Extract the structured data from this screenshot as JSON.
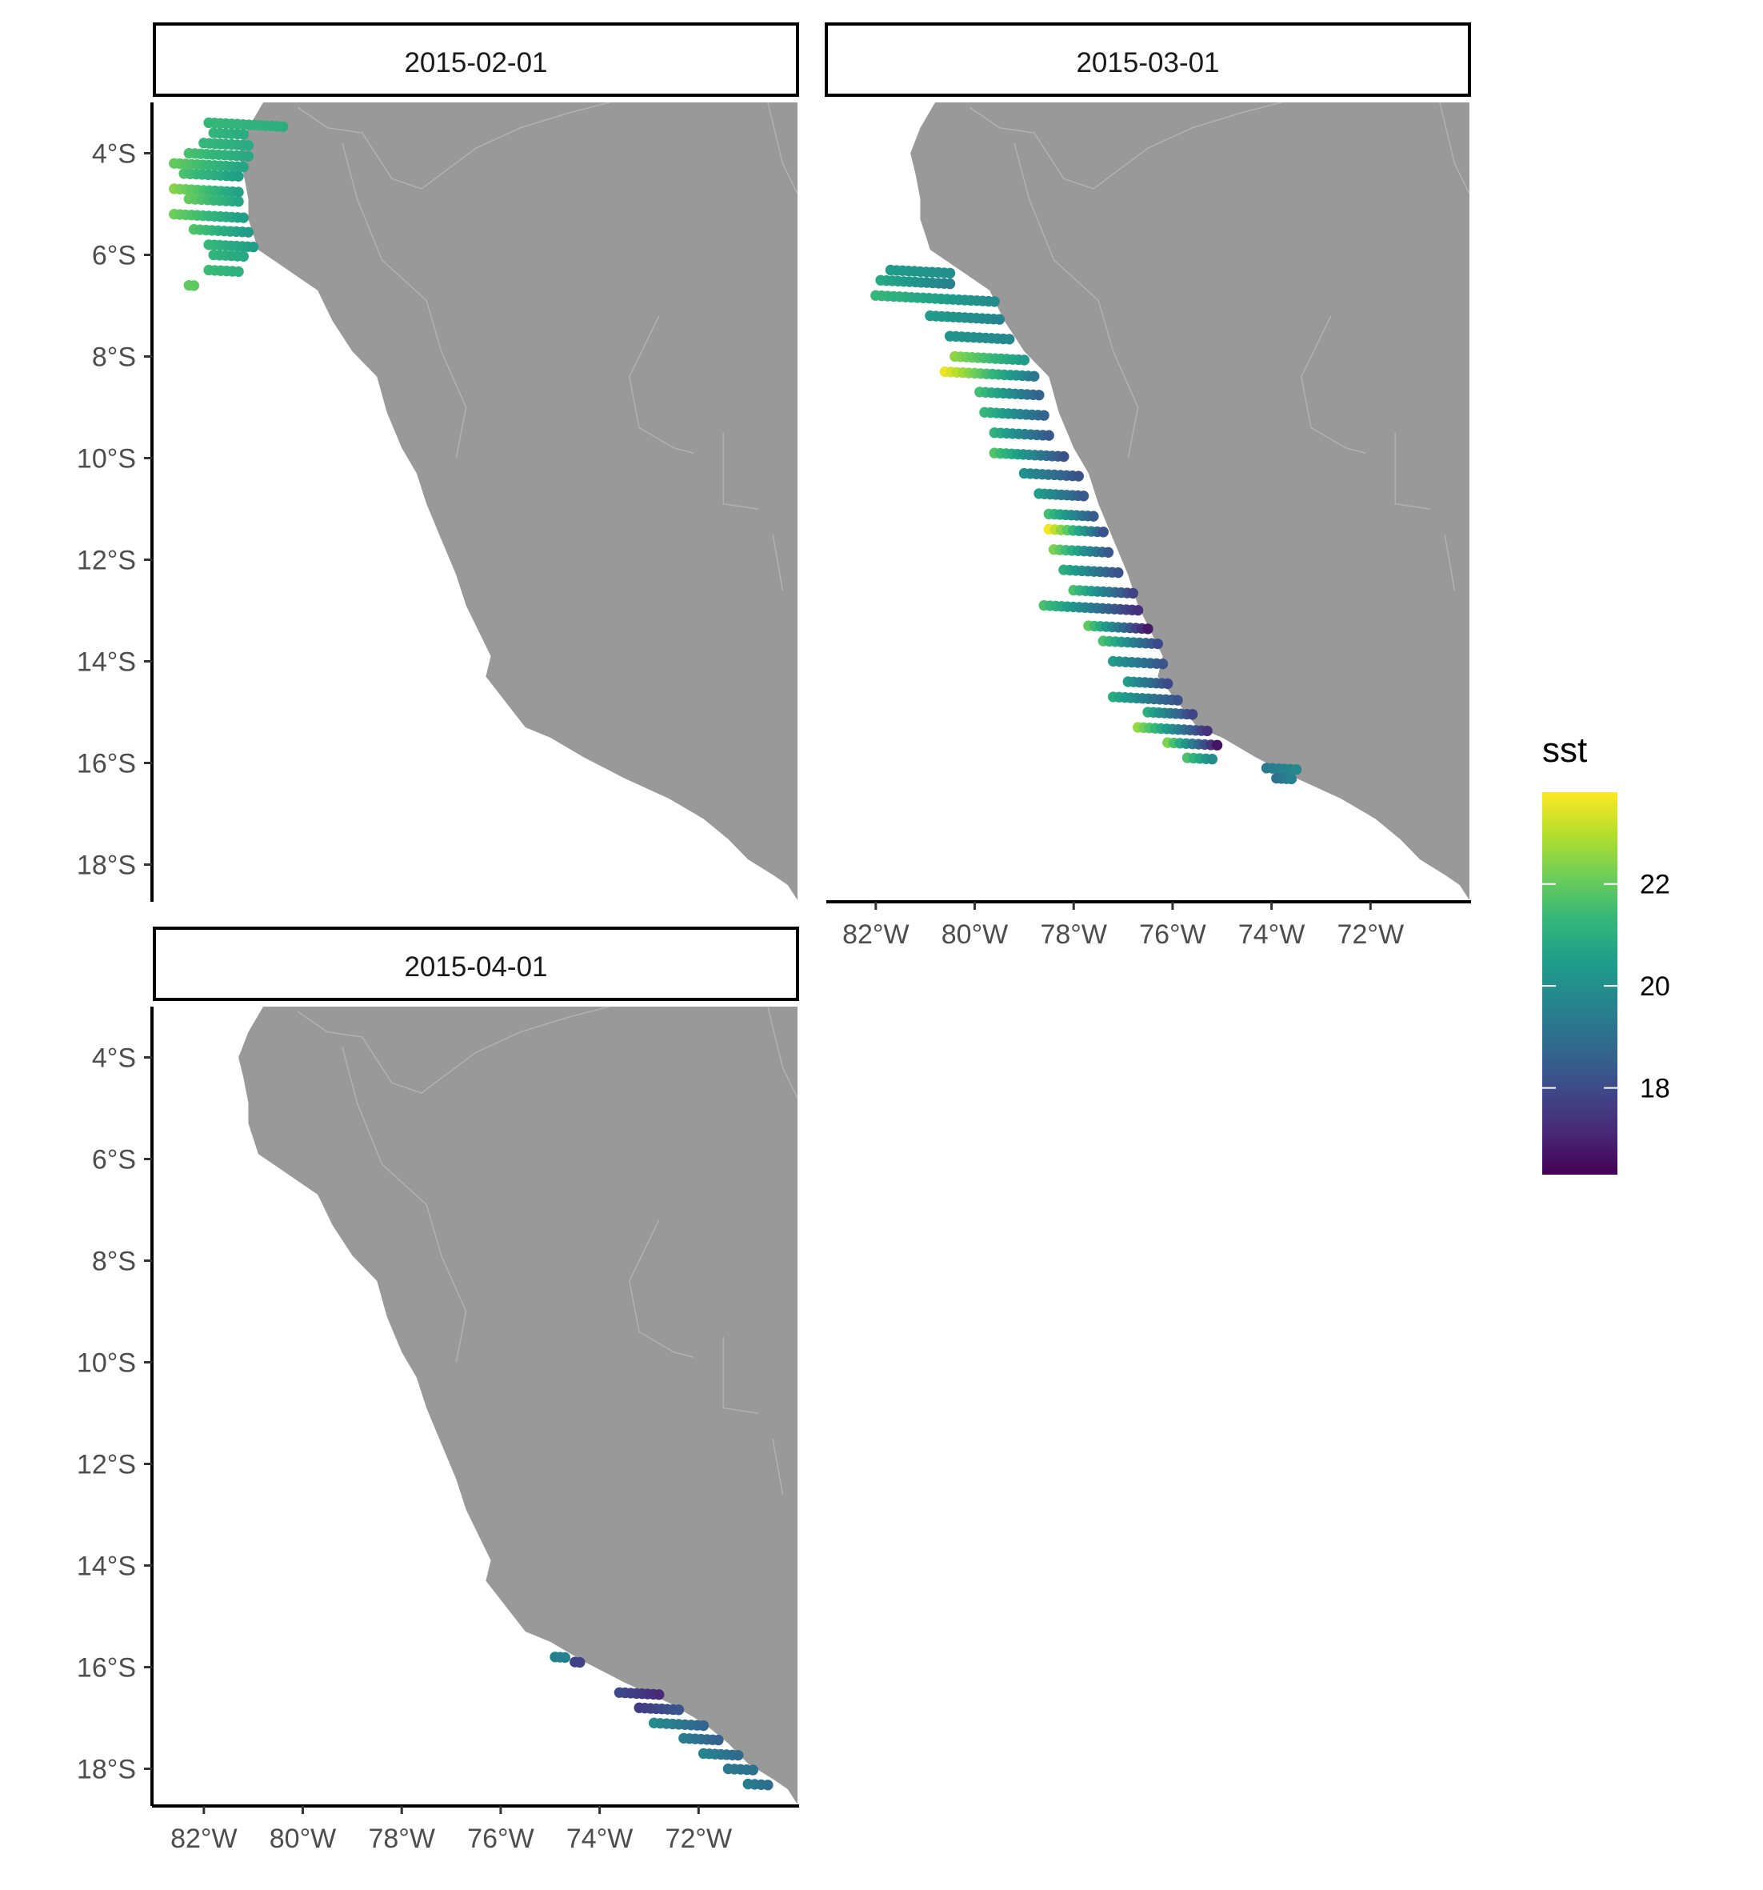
{
  "chart_data": {
    "type": "scatter",
    "subtype": "faceted map",
    "x_axis": {
      "lim": [
        -83,
        -70
      ],
      "ticks": [
        -82,
        -80,
        -78,
        -76,
        -74,
        -72
      ],
      "tick_labels": [
        "82°W",
        "80°W",
        "78°W",
        "76°W",
        "74°W",
        "72°W"
      ]
    },
    "y_axis": {
      "lim": [
        -18.7,
        -3
      ],
      "ticks": [
        -4,
        -6,
        -8,
        -10,
        -12,
        -14,
        -16,
        -18
      ],
      "tick_labels": [
        "4°S",
        "6°S",
        "8°S",
        "10°S",
        "12°S",
        "14°S",
        "16°S",
        "18°S"
      ]
    },
    "grid": false,
    "land_color": "#999999",
    "border_color": "#b3b3b3",
    "coastline": [
      [
        -80.8,
        -3.0
      ],
      [
        -81.1,
        -3.5
      ],
      [
        -81.3,
        -4.0
      ],
      [
        -81.2,
        -4.4
      ],
      [
        -81.1,
        -4.9
      ],
      [
        -81.1,
        -5.3
      ],
      [
        -81.0,
        -5.6
      ],
      [
        -80.9,
        -5.9
      ],
      [
        -80.3,
        -6.3
      ],
      [
        -79.7,
        -6.7
      ],
      [
        -79.4,
        -7.3
      ],
      [
        -79.0,
        -7.9
      ],
      [
        -78.5,
        -8.4
      ],
      [
        -78.3,
        -9.1
      ],
      [
        -78.0,
        -9.8
      ],
      [
        -77.7,
        -10.3
      ],
      [
        -77.5,
        -10.9
      ],
      [
        -77.2,
        -11.6
      ],
      [
        -76.9,
        -12.3
      ],
      [
        -76.7,
        -12.9
      ],
      [
        -76.4,
        -13.5
      ],
      [
        -76.2,
        -13.9
      ],
      [
        -76.3,
        -14.3
      ],
      [
        -75.9,
        -14.8
      ],
      [
        -75.5,
        -15.3
      ],
      [
        -75.0,
        -15.5
      ],
      [
        -74.3,
        -15.9
      ],
      [
        -73.5,
        -16.3
      ],
      [
        -72.6,
        -16.7
      ],
      [
        -71.9,
        -17.1
      ],
      [
        -71.4,
        -17.5
      ],
      [
        -71.0,
        -17.9
      ],
      [
        -70.5,
        -18.2
      ],
      [
        -70.2,
        -18.4
      ],
      [
        -70.0,
        -18.7
      ]
    ],
    "borders": [
      [
        [
          -80.1,
          -3.1
        ],
        [
          -79.5,
          -3.5
        ],
        [
          -78.8,
          -3.6
        ],
        [
          -78.2,
          -4.5
        ],
        [
          -77.6,
          -4.7
        ],
        [
          -76.5,
          -3.9
        ],
        [
          -75.6,
          -3.5
        ],
        [
          -74.6,
          -3.2
        ],
        [
          -73.8,
          -3.0
        ]
      ],
      [
        [
          -70.6,
          -3.0
        ],
        [
          -70.3,
          -4.2
        ],
        [
          -70.0,
          -4.8
        ]
      ],
      [
        [
          -72.8,
          -7.2
        ],
        [
          -73.4,
          -8.4
        ],
        [
          -73.2,
          -9.4
        ],
        [
          -72.5,
          -9.8
        ],
        [
          -72.1,
          -9.9
        ]
      ],
      [
        [
          -79.2,
          -3.8
        ],
        [
          -78.9,
          -4.9
        ],
        [
          -78.4,
          -6.1
        ],
        [
          -77.5,
          -6.9
        ],
        [
          -77.2,
          -7.9
        ],
        [
          -76.7,
          -9.0
        ],
        [
          -76.9,
          -10.0
        ]
      ],
      [
        [
          -71.5,
          -9.5
        ],
        [
          -71.5,
          -10.9
        ],
        [
          -70.8,
          -11.0
        ]
      ],
      [
        [
          -70.5,
          -11.5
        ],
        [
          -70.3,
          -12.6
        ]
      ]
    ],
    "color_scale": {
      "name": "sst",
      "range": [
        16.3,
        23.8
      ],
      "breaks": [
        18,
        20,
        22
      ],
      "palette": [
        "#440154",
        "#482878",
        "#3e4989",
        "#31688e",
        "#26828e",
        "#1f9e89",
        "#35b779",
        "#6ece58",
        "#b5de2b",
        "#fde725"
      ]
    },
    "legend_position": "right",
    "panels": [
      {
        "label": "2015-02-01",
        "tracks": [
          {
            "lat": -3.4,
            "lon": [
              -81.9,
              -80.4
            ],
            "sst": [
              21.3,
              21.0
            ]
          },
          {
            "lat": -3.6,
            "lon": [
              -81.8,
              -81.2
            ],
            "sst": [
              21.2,
              20.9
            ]
          },
          {
            "lat": -3.8,
            "lon": [
              -82.0,
              -81.1
            ],
            "sst": [
              21.3,
              20.9
            ]
          },
          {
            "lat": -4.0,
            "lon": [
              -82.3,
              -81.1
            ],
            "sst": [
              21.6,
              20.8
            ]
          },
          {
            "lat": -4.2,
            "lon": [
              -82.6,
              -81.2
            ],
            "sst": [
              22.0,
              20.7
            ]
          },
          {
            "lat": -4.4,
            "lon": [
              -82.4,
              -81.3
            ],
            "sst": [
              21.6,
              20.5
            ]
          },
          {
            "lat": -4.7,
            "lon": [
              -82.6,
              -81.3
            ],
            "sst": [
              22.4,
              20.6
            ]
          },
          {
            "lat": -4.9,
            "lon": [
              -82.3,
              -81.3
            ],
            "sst": [
              22.0,
              20.7
            ]
          },
          {
            "lat": -5.2,
            "lon": [
              -82.6,
              -81.2
            ],
            "sst": [
              22.1,
              20.5
            ]
          },
          {
            "lat": -5.5,
            "lon": [
              -82.2,
              -81.1
            ],
            "sst": [
              21.7,
              20.4
            ]
          },
          {
            "lat": -5.8,
            "lon": [
              -81.9,
              -81.0
            ],
            "sst": [
              21.3,
              20.5
            ]
          },
          {
            "lat": -6.0,
            "lon": [
              -81.8,
              -81.2
            ],
            "sst": [
              21.2,
              20.8
            ]
          },
          {
            "lat": -6.3,
            "lon": [
              -81.9,
              -81.3
            ],
            "sst": [
              21.4,
              21.1
            ]
          },
          {
            "lat": -6.6,
            "lon": [
              -82.3,
              -82.2
            ],
            "sst": [
              21.9,
              21.9
            ]
          }
        ]
      },
      {
        "label": "2015-03-01",
        "tracks": [
          {
            "lat": -6.3,
            "lon": [
              -81.7,
              -80.5
            ],
            "sst": [
              20.4,
              20.0
            ]
          },
          {
            "lat": -6.5,
            "lon": [
              -81.9,
              -80.5
            ],
            "sst": [
              20.8,
              19.6
            ]
          },
          {
            "lat": -6.8,
            "lon": [
              -82.0,
              -79.6
            ],
            "sst": [
              21.3,
              19.9
            ]
          },
          {
            "lat": -7.2,
            "lon": [
              -80.9,
              -79.5
            ],
            "sst": [
              20.4,
              19.7
            ]
          },
          {
            "lat": -7.6,
            "lon": [
              -80.5,
              -79.3
            ],
            "sst": [
              20.2,
              19.8
            ]
          },
          {
            "lat": -8.0,
            "lon": [
              -80.4,
              -79.0
            ],
            "sst": [
              22.5,
              20.4
            ]
          },
          {
            "lat": -8.3,
            "lon": [
              -80.6,
              -78.8
            ],
            "sst": [
              23.6,
              19.3
            ]
          },
          {
            "lat": -8.7,
            "lon": [
              -79.9,
              -78.7
            ],
            "sst": [
              21.5,
              18.7
            ]
          },
          {
            "lat": -9.1,
            "lon": [
              -79.8,
              -78.6
            ],
            "sst": [
              21.3,
              18.7
            ]
          },
          {
            "lat": -9.5,
            "lon": [
              -79.6,
              -78.5
            ],
            "sst": [
              21.1,
              18.4
            ]
          },
          {
            "lat": -9.9,
            "lon": [
              -79.6,
              -78.2
            ],
            "sst": [
              21.7,
              18.2
            ]
          },
          {
            "lat": -10.3,
            "lon": [
              -79.0,
              -77.9
            ],
            "sst": [
              20.1,
              18.2
            ]
          },
          {
            "lat": -10.7,
            "lon": [
              -78.7,
              -77.8
            ],
            "sst": [
              20.5,
              18.4
            ]
          },
          {
            "lat": -11.1,
            "lon": [
              -78.5,
              -77.6
            ],
            "sst": [
              21.5,
              18.5
            ]
          },
          {
            "lat": -11.4,
            "lon": [
              -78.5,
              -77.4
            ],
            "sst": [
              23.7,
              18.3
            ]
          },
          {
            "lat": -11.8,
            "lon": [
              -78.4,
              -77.3
            ],
            "sst": [
              22.3,
              18.4
            ]
          },
          {
            "lat": -12.2,
            "lon": [
              -78.2,
              -77.1
            ],
            "sst": [
              21.0,
              18.2
            ]
          },
          {
            "lat": -12.6,
            "lon": [
              -78.0,
              -76.8
            ],
            "sst": [
              21.6,
              17.8
            ]
          },
          {
            "lat": -12.9,
            "lon": [
              -78.6,
              -76.7
            ],
            "sst": [
              21.6,
              17.3
            ]
          },
          {
            "lat": -13.3,
            "lon": [
              -77.7,
              -76.5
            ],
            "sst": [
              21.9,
              16.8
            ]
          },
          {
            "lat": -13.6,
            "lon": [
              -77.4,
              -76.3
            ],
            "sst": [
              21.6,
              18.0
            ]
          },
          {
            "lat": -14.0,
            "lon": [
              -77.2,
              -76.2
            ],
            "sst": [
              20.4,
              18.3
            ]
          },
          {
            "lat": -14.4,
            "lon": [
              -76.9,
              -76.1
            ],
            "sst": [
              20.4,
              18.0
            ]
          },
          {
            "lat": -14.7,
            "lon": [
              -77.2,
              -75.9
            ],
            "sst": [
              20.9,
              18.2
            ]
          },
          {
            "lat": -15.0,
            "lon": [
              -76.5,
              -75.6
            ],
            "sst": [
              21.0,
              17.8
            ]
          },
          {
            "lat": -15.3,
            "lon": [
              -76.7,
              -75.3
            ],
            "sst": [
              22.6,
              17.4
            ]
          },
          {
            "lat": -15.6,
            "lon": [
              -76.1,
              -75.1
            ],
            "sst": [
              22.3,
              16.7
            ]
          },
          {
            "lat": -15.9,
            "lon": [
              -75.7,
              -75.2
            ],
            "sst": [
              21.6,
              19.9
            ]
          },
          {
            "lat": -16.1,
            "lon": [
              -74.1,
              -73.5
            ],
            "sst": [
              19.4,
              19.8
            ]
          },
          {
            "lat": -16.3,
            "lon": [
              -73.9,
              -73.6
            ],
            "sst": [
              19.1,
              19.6
            ]
          }
        ]
      },
      {
        "label": "2015-04-01",
        "tracks": [
          {
            "lat": -15.8,
            "lon": [
              -74.9,
              -74.7
            ],
            "sst": [
              19.6,
              19.6
            ]
          },
          {
            "lat": -15.9,
            "lon": [
              -74.5,
              -74.4
            ],
            "sst": [
              17.8,
              17.8
            ]
          },
          {
            "lat": -16.5,
            "lon": [
              -73.6,
              -72.8
            ],
            "sst": [
              18.0,
              17.2
            ]
          },
          {
            "lat": -16.8,
            "lon": [
              -73.2,
              -72.4
            ],
            "sst": [
              17.6,
              18.3
            ]
          },
          {
            "lat": -17.1,
            "lon": [
              -72.9,
              -71.9
            ],
            "sst": [
              20.0,
              18.7
            ]
          },
          {
            "lat": -17.4,
            "lon": [
              -72.3,
              -71.6
            ],
            "sst": [
              19.5,
              18.6
            ]
          },
          {
            "lat": -17.7,
            "lon": [
              -71.9,
              -71.2
            ],
            "sst": [
              19.7,
              18.9
            ]
          },
          {
            "lat": -18.0,
            "lon": [
              -71.4,
              -70.9
            ],
            "sst": [
              19.3,
              19.1
            ]
          },
          {
            "lat": -18.3,
            "lon": [
              -71.0,
              -70.6
            ],
            "sst": [
              19.5,
              19.0
            ]
          }
        ]
      }
    ]
  }
}
